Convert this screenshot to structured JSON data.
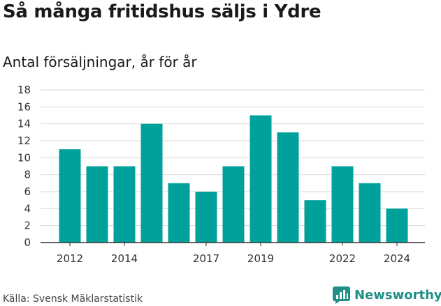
{
  "header": {
    "title": "Så många fritidshus säljs i Ydre",
    "subtitle": "Antal försäljningar, år för år"
  },
  "footer": {
    "source": "Källa: Svensk Mäklarstatistik",
    "brand": "Newsworthy",
    "brand_icon": "newsworthy-logo-icon"
  },
  "colors": {
    "bar": "#00a19a",
    "grid": "#d9d9d9",
    "brand": "#1f8f87"
  },
  "chart_data": {
    "type": "bar",
    "categories": [
      "2012",
      "2013",
      "2014",
      "2015",
      "2016",
      "2017",
      "2018",
      "2019",
      "2020",
      "2021",
      "2022",
      "2023",
      "2024"
    ],
    "values": [
      11,
      9,
      9,
      14,
      7,
      6,
      9,
      15,
      13,
      5,
      9,
      7,
      4
    ],
    "x_tick_labels": [
      "2012",
      "2014",
      "2017",
      "2019",
      "2022",
      "2024"
    ],
    "y_ticks": [
      0,
      2,
      4,
      6,
      8,
      10,
      12,
      14,
      16,
      18
    ],
    "ylim": [
      0,
      18
    ],
    "grid": true,
    "legend": false
  }
}
